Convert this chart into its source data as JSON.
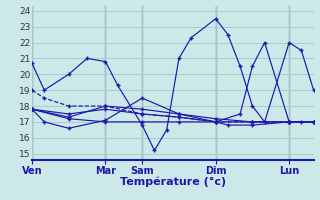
{
  "title": "Température (°c)",
  "bg_color": "#cce8e8",
  "grid_color": "#aacccc",
  "line_color": "#1a1aaa",
  "ylim": [
    14.6,
    24.3
  ],
  "yticks": [
    15,
    16,
    17,
    18,
    19,
    20,
    21,
    22,
    23,
    24
  ],
  "day_labels": [
    "Ven",
    "Mar",
    "Sam",
    "Dim",
    "Lun"
  ],
  "day_x": [
    0,
    6,
    9,
    15,
    21
  ],
  "xlim": [
    0,
    23
  ],
  "series": [
    {
      "x": [
        0,
        1,
        3,
        4.5,
        6,
        7,
        9,
        10,
        11,
        12,
        13,
        15,
        16,
        17,
        18,
        19,
        21,
        22,
        23
      ],
      "y": [
        20.7,
        19.0,
        20.0,
        21.0,
        20.8,
        19.3,
        16.8,
        15.2,
        16.5,
        21.0,
        22.3,
        23.5,
        22.5,
        20.5,
        18.0,
        17.0,
        22.0,
        21.5,
        19.0
      ],
      "style": "-",
      "marker": "+"
    },
    {
      "x": [
        0,
        1,
        3,
        6,
        9,
        12,
        15,
        18,
        21,
        23
      ],
      "y": [
        19.0,
        18.5,
        18.0,
        18.0,
        17.5,
        17.3,
        17.0,
        17.0,
        17.0,
        17.0
      ],
      "style": "--",
      "marker": "+"
    },
    {
      "x": [
        0,
        3,
        6,
        9,
        12,
        15,
        18,
        21,
        23
      ],
      "y": [
        17.8,
        17.5,
        17.8,
        17.5,
        17.3,
        17.0,
        17.0,
        17.0,
        17.0
      ],
      "style": "-",
      "marker": "+"
    },
    {
      "x": [
        0,
        3,
        6,
        9,
        12,
        15,
        18,
        21,
        23
      ],
      "y": [
        17.8,
        17.3,
        18.0,
        17.8,
        17.5,
        17.2,
        17.0,
        17.0,
        17.0
      ],
      "style": "-",
      "marker": "+"
    },
    {
      "x": [
        0,
        1,
        3,
        6,
        9,
        12,
        15,
        16,
        18,
        21,
        23
      ],
      "y": [
        17.8,
        17.0,
        16.6,
        17.1,
        18.5,
        17.5,
        17.0,
        16.8,
        16.8,
        17.0,
        17.0
      ],
      "style": "-",
      "marker": "+"
    },
    {
      "x": [
        0,
        3,
        6,
        9,
        12,
        15,
        17,
        18,
        19,
        21,
        22,
        23
      ],
      "y": [
        17.8,
        17.2,
        17.0,
        17.0,
        17.0,
        17.0,
        17.5,
        20.5,
        22.0,
        17.0,
        17.0,
        17.0
      ],
      "style": "-",
      "marker": "+"
    }
  ]
}
